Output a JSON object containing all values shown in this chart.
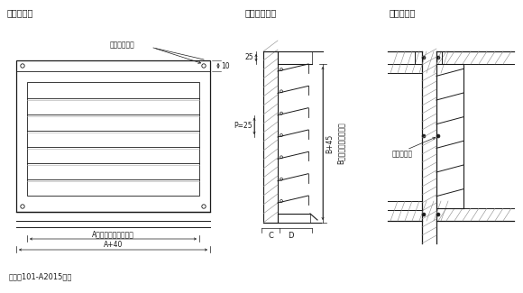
{
  "bg_color": "#ffffff",
  "line_color": "#1a1a1a",
  "title_gaikan": "》外観図》",
  "title_gaikan2": "【外観図】",
  "title_danmen": "【縦断面図】",
  "title_施工例": "【施工例】",
  "label_取付けビス穴": "取付けビス穴",
  "label_10": "10",
  "label_25": "25",
  "label_P25": "P=25",
  "label_A": "A（取付け開口寸法）",
  "label_A40": "A+40",
  "label_図面": "図面は101-A2015です",
  "label_B45": "B+45",
  "label_B取付け": "B（取付け開口寸法）",
  "label_C": "C",
  "label_D": "D",
  "label_取付けビス": "取付けビス"
}
